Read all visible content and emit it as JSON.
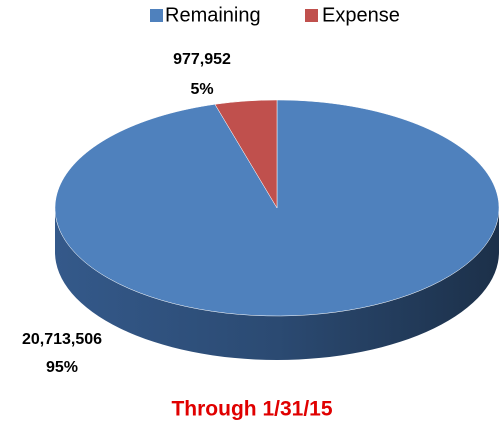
{
  "chart_data": {
    "type": "pie",
    "title": "Through 1/31/15",
    "categories": [
      "Remaining",
      "Expense"
    ],
    "values": [
      20713506,
      977952
    ],
    "value_labels": [
      "20,713,506",
      "977,952"
    ],
    "percent_labels": [
      "95%",
      "5%"
    ],
    "colors": [
      "#4f81bd",
      "#c0504d"
    ],
    "legend": "top"
  }
}
